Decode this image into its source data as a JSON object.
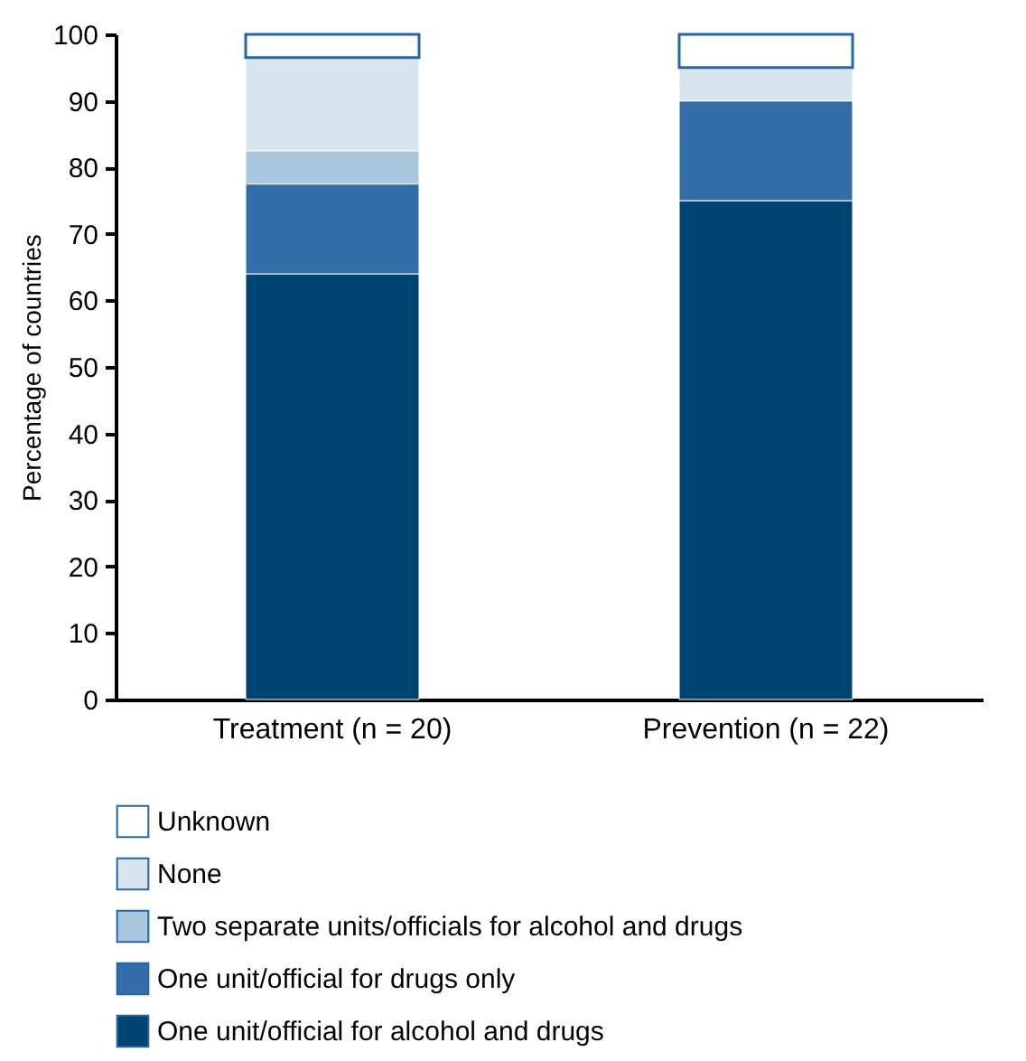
{
  "chart_data": {
    "type": "bar",
    "stacked": true,
    "ylabel": "Percentage of countries",
    "categories": [
      "Treatment (n = 20)",
      "Prevention (n = 22)"
    ],
    "series": [
      {
        "name": "One unit/official for alcohol and drugs",
        "color": "#004472",
        "values": [
          64,
          75
        ]
      },
      {
        "name": "One unit/official for drugs only",
        "color": "#336ea8",
        "values": [
          13.5,
          15
        ]
      },
      {
        "name": "Two separate units/officials for alcohol and drugs",
        "color": "#a8c6dc",
        "values": [
          5,
          0
        ]
      },
      {
        "name": "None",
        "color": "#d8e4ee",
        "values": [
          14,
          5
        ]
      },
      {
        "name": "Unknown",
        "color": "#ffffff",
        "values": [
          3.5,
          5
        ]
      }
    ],
    "ylim": [
      0,
      100
    ],
    "yticks": [
      0,
      10,
      20,
      30,
      40,
      50,
      60,
      70,
      80,
      90,
      100
    ],
    "grid": false,
    "legend": "bottom"
  }
}
